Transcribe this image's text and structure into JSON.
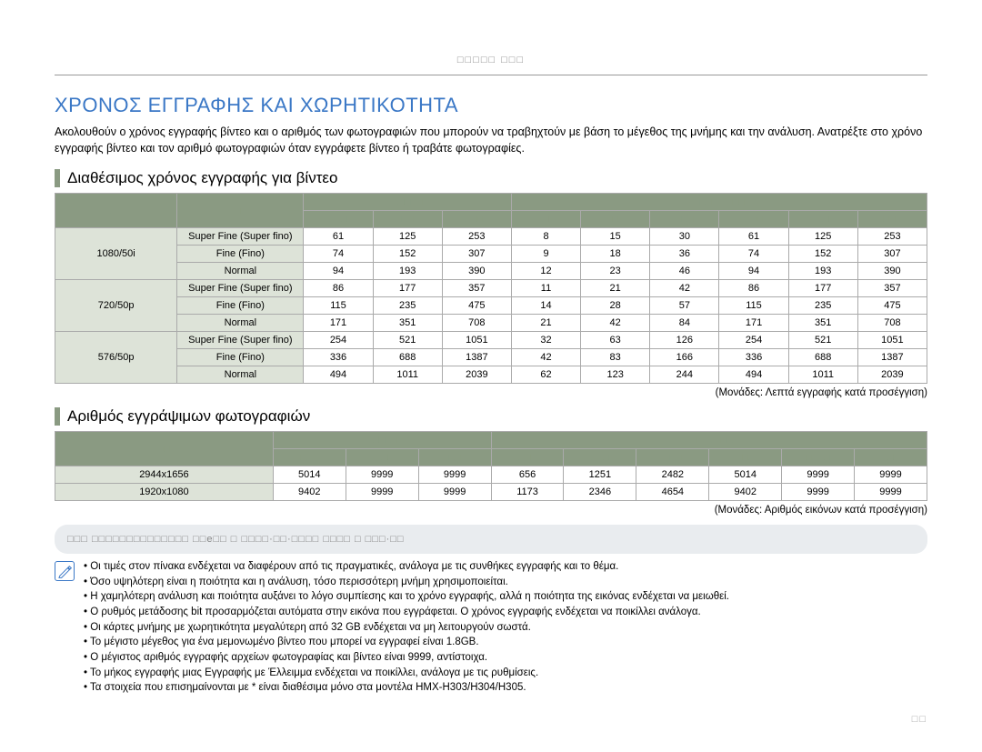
{
  "top_label": "□□□□□ □□□",
  "main_heading": "ΧΡΟΝΟΣ ΕΓΓΡΑΦΗΣ ΚΑΙ ΧΩΡΗΤΙΚΟΤΗΤΑ",
  "intro": "Ακολουθούν ο χρόνος εγγραφής βίντεο και ο αριθμός των φωτογραφιών που μπορούν να τραβηχτούν με βάση το μέγεθος της μνήμης και την ανάλυση. Ανατρέξτε στο χρόνο εγγραφής βίντεο και τον αριθμό φωτογραφιών όταν εγγράφετε βίντεο ή τραβάτε φωτογραφίες.",
  "video": {
    "heading": "Διαθέσιμος χρόνος εγγραφής για βίντεο",
    "top_headers": {
      "h1": "□□",
      "h2": "□□",
      "g1": "□□□□□",
      "g2": "□□□□ □□□□"
    },
    "sub_headers": [
      "□□□",
      "□□□□",
      "□□□□",
      "□□□",
      "□□□",
      "□□□",
      "□□□",
      "□□□□",
      "□□□"
    ],
    "groups": [
      {
        "res": "1080/50i",
        "rows": [
          {
            "q": "Super Fine (Super fino)",
            "v": [
              61,
              125,
              253,
              8,
              15,
              30,
              61,
              125,
              253
            ]
          },
          {
            "q": "Fine (Fino)",
            "v": [
              74,
              152,
              307,
              9,
              18,
              36,
              74,
              152,
              307
            ]
          },
          {
            "q": "Normal",
            "v": [
              94,
              193,
              390,
              12,
              23,
              46,
              94,
              193,
              390
            ]
          }
        ]
      },
      {
        "res": "720/50p",
        "rows": [
          {
            "q": "Super Fine (Super fino)",
            "v": [
              86,
              177,
              357,
              11,
              21,
              42,
              86,
              177,
              357
            ]
          },
          {
            "q": "Fine (Fino)",
            "v": [
              115,
              235,
              475,
              14,
              28,
              57,
              115,
              235,
              475
            ]
          },
          {
            "q": "Normal",
            "v": [
              171,
              351,
              708,
              21,
              42,
              84,
              171,
              351,
              708
            ]
          }
        ]
      },
      {
        "res": "576/50p",
        "rows": [
          {
            "q": "Super Fine (Super fino)",
            "v": [
              254,
              521,
              1051,
              32,
              63,
              126,
              254,
              521,
              1051
            ]
          },
          {
            "q": "Fine (Fino)",
            "v": [
              336,
              688,
              1387,
              42,
              83,
              166,
              336,
              688,
              1387
            ]
          },
          {
            "q": "Normal",
            "v": [
              494,
              1011,
              2039,
              62,
              123,
              244,
              494,
              1011,
              2039
            ]
          }
        ]
      }
    ],
    "unit_note": "(Μονάδες: Λεπτά εγγραφής κατά προσέγγιση)"
  },
  "photo": {
    "heading": "Αριθμός εγγράψιμων φωτογραφιών",
    "top_headers": {
      "h1": "□□",
      "g1": "□□□□□",
      "g2": "□□ □□ □□□"
    },
    "sub_headers": [
      "□□□",
      "□□□□",
      "□□□□",
      "□□□",
      "□□□",
      "□□□",
      "□□□",
      "□□□□",
      "□□□"
    ],
    "rows": [
      {
        "res": "2944x1656",
        "v": [
          5014,
          9999,
          9999,
          656,
          1251,
          2482,
          5014,
          9999,
          9999
        ]
      },
      {
        "res": "1920x1080",
        "v": [
          9402,
          9999,
          9999,
          1173,
          2346,
          4654,
          9402,
          9999,
          9999
        ]
      }
    ],
    "unit_note": "(Μονάδες: Αριθμός εικόνων κατά προσέγγιση)"
  },
  "footnote_box": "□□□   □□□□□□□□□□□□□□ □□e□□ □ □□□□·□□·□□□□ □□□□\n                                              □ □□□·□□",
  "notes": [
    "Οι τιμές στον πίνακα ενδέχεται να διαφέρουν από τις πραγματικές, ανάλογα με τις συνθήκες εγγραφής και το θέμα.",
    "Όσο υψηλότερη είναι η ποιότητα και η ανάλυση, τόσο περισσότερη μνήμη χρησιμοποιείται.",
    "Η χαμηλότερη ανάλυση και ποιότητα αυξάνει το λόγο συμπίεσης και το χρόνο εγγραφής, αλλά η ποιότητα της εικόνας ενδέχεται να μειωθεί.",
    "Ο ρυθμός μετάδοσης bit προσαρμόζεται αυτόματα στην εικόνα που εγγράφεται. Ο χρόνος εγγραφής ενδέχεται να ποικίλλει ανάλογα.",
    "Οι κάρτες μνήμης με χωρητικότητα μεγαλύτερη από 32 GB ενδέχεται να μη λειτουργούν σωστά.",
    "Το μέγιστο μέγεθος για ένα μεμονωμένο βίντεο που μπορεί να εγγραφεί είναι 1.8GB.",
    "Ο μέγιστος αριθμός εγγραφής αρχείων φωτογραφίας και βίντεο είναι 9999, αντίστοιχα.",
    "Το μήκος εγγραφής μιας Εγγραφής με Έλλειμμα ενδέχεται να ποικίλλει, ανάλογα με τις ρυθμίσεις.",
    "Τα στοιχεία που επισημαίνονται με * είναι διαθέσιμα μόνο στα μοντέλα HMX-H303/H304/H305."
  ],
  "page_num": "□□"
}
